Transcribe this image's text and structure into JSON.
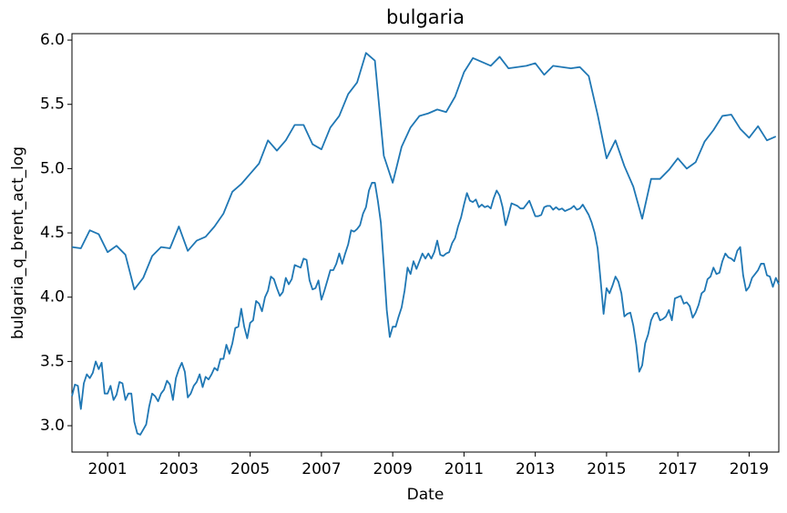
{
  "chart_data": {
    "type": "line",
    "title": "bulgaria",
    "x_label": "Date",
    "y_label": "bulgaria_q_brent_act_log",
    "xlim": [
      2000,
      2019.833
    ],
    "xticks": [
      2001,
      2003,
      2005,
      2007,
      2009,
      2011,
      2013,
      2015,
      2017,
      2019
    ],
    "ylim": [
      2.795,
      6.05
    ],
    "yticks": [
      {
        "value": 3,
        "label": "3.0"
      },
      {
        "value": 3.5,
        "label": "3.5"
      },
      {
        "value": 4,
        "label": "4.0"
      },
      {
        "value": 4.5,
        "label": "4.5"
      },
      {
        "value": 5,
        "label": "5.0"
      },
      {
        "value": 5.5,
        "label": "5.5"
      },
      {
        "value": 6,
        "label": "6.0"
      }
    ],
    "grid": false,
    "series": [
      {
        "color": "#1f77b4",
        "x": [
          2000,
          2000.25,
          2000.5,
          2000.75,
          2001,
          2001.25,
          2001.5,
          2001.75,
          2002,
          2002.25,
          2002.5,
          2002.75,
          2003,
          2003.25,
          2003.5,
          2003.75,
          2004,
          2004.25,
          2004.5,
          2004.75,
          2005,
          2005.25,
          2005.5,
          2005.75,
          2006,
          2006.25,
          2006.5,
          2006.75,
          2007,
          2007.25,
          2007.5,
          2007.75,
          2008,
          2008.25,
          2008.5,
          2008.75,
          2009,
          2009.25,
          2009.5,
          2009.75,
          2010,
          2010.25,
          2010.5,
          2010.75,
          2011,
          2011.25,
          2011.5,
          2011.75,
          2012,
          2012.25,
          2012.5,
          2012.75,
          2013,
          2013.25,
          2013.5,
          2013.75,
          2014,
          2014.25,
          2014.5,
          2014.75,
          2015,
          2015.25,
          2015.5,
          2015.75,
          2016,
          2016.25,
          2016.5,
          2016.75,
          2017,
          2017.25,
          2017.5,
          2017.75,
          2018,
          2018.25,
          2018.5,
          2018.75,
          2019,
          2019.25,
          2019.5,
          2019.75
        ],
        "values": [
          4.39,
          4.38,
          4.52,
          4.49,
          4.35,
          4.4,
          4.33,
          4.06,
          4.15,
          4.32,
          4.39,
          4.38,
          4.55,
          4.36,
          4.44,
          4.47,
          4.55,
          4.65,
          4.82,
          4.88,
          4.96,
          5.04,
          5.22,
          5.14,
          5.22,
          5.34,
          5.34,
          5.19,
          5.15,
          5.32,
          5.41,
          5.58,
          5.67,
          5.9,
          5.84,
          5.1,
          4.89,
          5.17,
          5.32,
          5.41,
          5.43,
          5.46,
          5.44,
          5.56,
          5.75,
          5.86,
          5.83,
          5.8,
          5.87,
          5.78,
          5.79,
          5.8,
          5.82,
          5.73,
          5.8,
          5.79,
          5.78,
          5.79,
          5.72,
          5.42,
          5.08,
          5.22,
          5.02,
          4.86,
          4.61,
          4.92,
          4.92,
          4.99,
          5.08,
          5.0,
          5.05,
          5.21,
          5.3,
          5.41,
          5.42,
          5.31,
          5.24,
          5.33,
          5.22,
          5.25
        ]
      },
      {
        "color": "#1f77b4",
        "x": [
          2000,
          2000.083,
          2000.167,
          2000.25,
          2000.333,
          2000.417,
          2000.5,
          2000.583,
          2000.667,
          2000.75,
          2000.833,
          2000.917,
          2001,
          2001.083,
          2001.167,
          2001.25,
          2001.333,
          2001.417,
          2001.5,
          2001.583,
          2001.667,
          2001.75,
          2001.833,
          2001.917,
          2002,
          2002.083,
          2002.167,
          2002.25,
          2002.333,
          2002.417,
          2002.5,
          2002.583,
          2002.667,
          2002.75,
          2002.833,
          2002.917,
          2003,
          2003.083,
          2003.167,
          2003.25,
          2003.333,
          2003.417,
          2003.5,
          2003.583,
          2003.667,
          2003.75,
          2003.833,
          2003.917,
          2004,
          2004.083,
          2004.167,
          2004.25,
          2004.333,
          2004.417,
          2004.5,
          2004.583,
          2004.667,
          2004.75,
          2004.833,
          2004.917,
          2005,
          2005.083,
          2005.167,
          2005.25,
          2005.333,
          2005.417,
          2005.5,
          2005.583,
          2005.667,
          2005.75,
          2005.833,
          2005.917,
          2006,
          2006.083,
          2006.167,
          2006.25,
          2006.333,
          2006.417,
          2006.5,
          2006.583,
          2006.667,
          2006.75,
          2006.833,
          2006.917,
          2007,
          2007.083,
          2007.167,
          2007.25,
          2007.333,
          2007.417,
          2007.5,
          2007.583,
          2007.667,
          2007.75,
          2007.833,
          2007.917,
          2008,
          2008.083,
          2008.167,
          2008.25,
          2008.333,
          2008.417,
          2008.5,
          2008.583,
          2008.667,
          2008.75,
          2008.833,
          2008.917,
          2009,
          2009.083,
          2009.167,
          2009.25,
          2009.333,
          2009.417,
          2009.5,
          2009.583,
          2009.667,
          2009.75,
          2009.833,
          2009.917,
          2010,
          2010.083,
          2010.167,
          2010.25,
          2010.333,
          2010.417,
          2010.5,
          2010.583,
          2010.667,
          2010.75,
          2010.833,
          2010.917,
          2011,
          2011.083,
          2011.167,
          2011.25,
          2011.333,
          2011.417,
          2011.5,
          2011.583,
          2011.667,
          2011.75,
          2011.833,
          2011.917,
          2012,
          2012.083,
          2012.167,
          2012.25,
          2012.333,
          2012.417,
          2012.5,
          2012.583,
          2012.667,
          2012.75,
          2012.833,
          2012.917,
          2013,
          2013.083,
          2013.167,
          2013.25,
          2013.333,
          2013.417,
          2013.5,
          2013.583,
          2013.667,
          2013.75,
          2013.833,
          2013.917,
          2014,
          2014.083,
          2014.167,
          2014.25,
          2014.333,
          2014.417,
          2014.5,
          2014.583,
          2014.667,
          2014.75,
          2014.833,
          2014.917,
          2015,
          2015.083,
          2015.167,
          2015.25,
          2015.333,
          2015.417,
          2015.5,
          2015.583,
          2015.667,
          2015.75,
          2015.833,
          2015.917,
          2016,
          2016.083,
          2016.167,
          2016.25,
          2016.333,
          2016.417,
          2016.5,
          2016.583,
          2016.667,
          2016.75,
          2016.833,
          2016.917,
          2017,
          2017.083,
          2017.167,
          2017.25,
          2017.333,
          2017.417,
          2017.5,
          2017.583,
          2017.667,
          2017.75,
          2017.833,
          2017.917,
          2018,
          2018.083,
          2018.167,
          2018.25,
          2018.333,
          2018.417,
          2018.5,
          2018.583,
          2018.667,
          2018.75,
          2018.833,
          2018.917,
          2019,
          2019.083,
          2019.167,
          2019.25,
          2019.333,
          2019.417,
          2019.5,
          2019.583,
          2019.667,
          2019.75,
          2019.833
        ],
        "values": [
          3.23,
          3.32,
          3.31,
          3.13,
          3.33,
          3.4,
          3.37,
          3.41,
          3.5,
          3.44,
          3.49,
          3.25,
          3.25,
          3.31,
          3.2,
          3.24,
          3.34,
          3.33,
          3.2,
          3.25,
          3.25,
          3.03,
          2.94,
          2.93,
          2.97,
          3.01,
          3.15,
          3.25,
          3.23,
          3.19,
          3.25,
          3.28,
          3.35,
          3.32,
          3.2,
          3.37,
          3.44,
          3.49,
          3.42,
          3.22,
          3.25,
          3.31,
          3.34,
          3.4,
          3.3,
          3.38,
          3.36,
          3.4,
          3.45,
          3.43,
          3.52,
          3.52,
          3.63,
          3.56,
          3.64,
          3.76,
          3.77,
          3.91,
          3.77,
          3.68,
          3.8,
          3.82,
          3.97,
          3.95,
          3.89,
          4.0,
          4.05,
          4.16,
          4.14,
          4.07,
          4.01,
          4.04,
          4.15,
          4.1,
          4.14,
          4.25,
          4.24,
          4.23,
          4.3,
          4.29,
          4.13,
          4.06,
          4.07,
          4.13,
          3.98,
          4.05,
          4.13,
          4.21,
          4.21,
          4.26,
          4.34,
          4.26,
          4.34,
          4.41,
          4.52,
          4.51,
          4.53,
          4.56,
          4.65,
          4.7,
          4.83,
          4.89,
          4.89,
          4.75,
          4.58,
          4.25,
          3.9,
          3.69,
          3.77,
          3.77,
          3.85,
          3.92,
          4.05,
          4.23,
          4.18,
          4.28,
          4.22,
          4.28,
          4.34,
          4.3,
          4.34,
          4.3,
          4.35,
          4.44,
          4.33,
          4.32,
          4.34,
          4.35,
          4.42,
          4.46,
          4.55,
          4.62,
          4.72,
          4.81,
          4.75,
          4.74,
          4.76,
          4.7,
          4.72,
          4.7,
          4.71,
          4.69,
          4.77,
          4.83,
          4.79,
          4.7,
          4.56,
          4.64,
          4.73,
          4.72,
          4.71,
          4.69,
          4.69,
          4.72,
          4.75,
          4.69,
          4.63,
          4.63,
          4.64,
          4.7,
          4.71,
          4.71,
          4.68,
          4.7,
          4.68,
          4.69,
          4.67,
          4.68,
          4.69,
          4.71,
          4.68,
          4.69,
          4.72,
          4.68,
          4.64,
          4.58,
          4.5,
          4.38,
          4.13,
          3.87,
          4.07,
          4.03,
          4.09,
          4.16,
          4.12,
          4.03,
          3.85,
          3.87,
          3.88,
          3.78,
          3.63,
          3.42,
          3.47,
          3.64,
          3.71,
          3.82,
          3.87,
          3.88,
          3.82,
          3.83,
          3.85,
          3.9,
          3.82,
          3.99,
          4.0,
          4.01,
          3.95,
          3.96,
          3.93,
          3.84,
          3.88,
          3.94,
          4.03,
          4.05,
          4.14,
          4.16,
          4.23,
          4.18,
          4.19,
          4.28,
          4.34,
          4.31,
          4.3,
          4.28,
          4.36,
          4.39,
          4.17,
          4.05,
          4.08,
          4.15,
          4.18,
          4.21,
          4.26,
          4.26,
          4.17,
          4.16,
          4.08,
          4.15,
          4.1
        ]
      }
    ]
  }
}
